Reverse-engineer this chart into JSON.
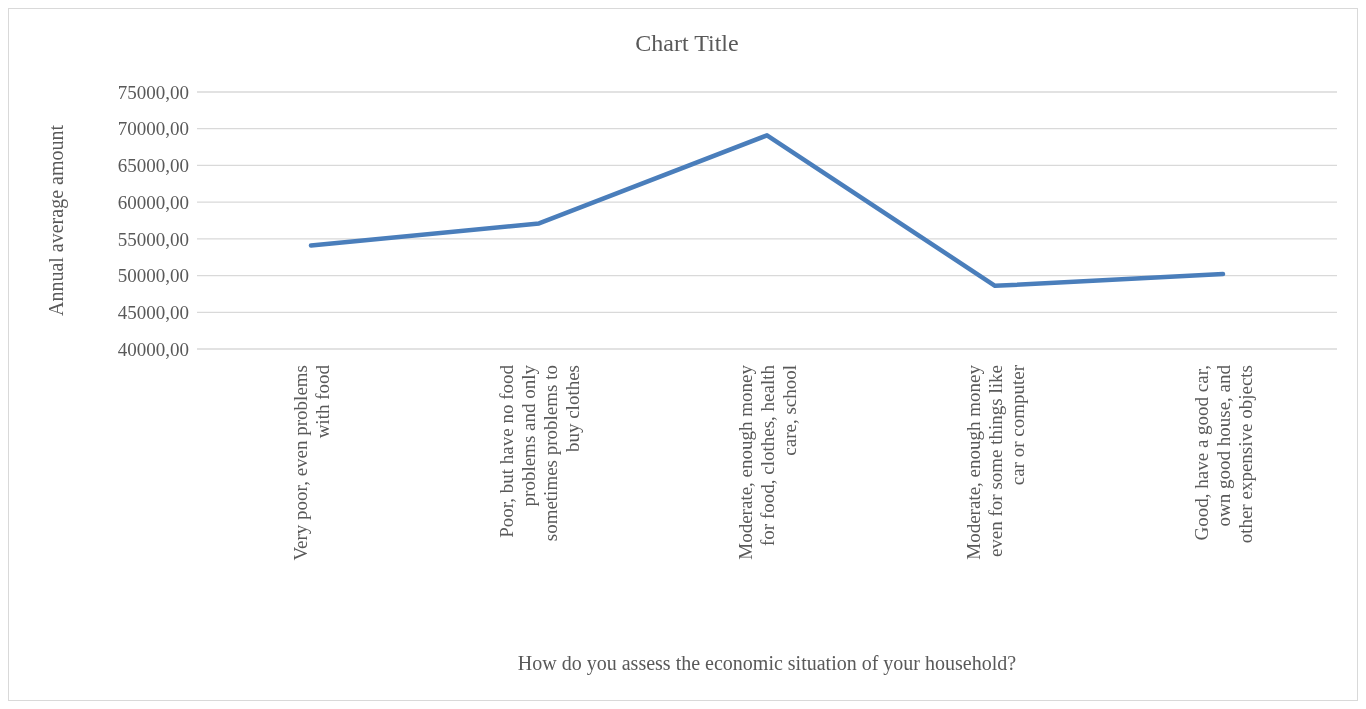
{
  "chart_data": {
    "type": "line",
    "title": "Chart Title",
    "xlabel": "How do you assess the economic situation of your household?",
    "ylabel": "Annual average amount",
    "categories": [
      "Very poor, even problems with food",
      "Poor, but have no food problems and only sometimes problems to buy clothes",
      "Moderate, enough money for food, clothes, health care, school",
      "Moderate, enough money even for some things like car or computer",
      "Good, have a good car, own good house, and other expensive objects"
    ],
    "series": [
      {
        "color": "#4a7ebb",
        "values": [
          54100,
          57100,
          69100,
          48600,
          50200
        ]
      }
    ],
    "ylim": [
      40000,
      75000
    ],
    "yticks": [
      {
        "value": 40000,
        "label": "40000,00"
      },
      {
        "value": 45000,
        "label": "45000,00"
      },
      {
        "value": 50000,
        "label": "50000,00"
      },
      {
        "value": 55000,
        "label": "55000,00"
      },
      {
        "value": 60000,
        "label": "60000,00"
      },
      {
        "value": 65000,
        "label": "65000,00"
      },
      {
        "value": 70000,
        "label": "70000,00"
      },
      {
        "value": 75000,
        "label": "75000,00"
      }
    ],
    "grid": "y",
    "marker": "none",
    "line_style": "solid"
  }
}
